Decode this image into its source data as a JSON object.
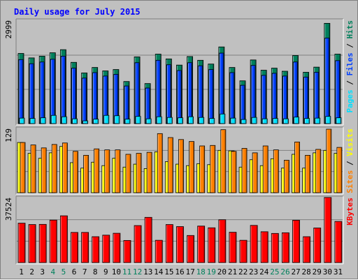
{
  "chart_data": {
    "type": "bar",
    "title": "Daily usage for July 2015",
    "colors": {
      "background": "#c0c0c0",
      "title": "#0000ff",
      "hits": "#00805c",
      "files": "#0040ff",
      "pages": "#00e0ff",
      "visits": "#ffff00",
      "sites": "#ff8000",
      "kbytes": "#ff0000",
      "weekend_day": "#00805c",
      "weekday": "#000000"
    },
    "days": [
      "1",
      "2",
      "3",
      "4",
      "5",
      "6",
      "7",
      "8",
      "9",
      "10",
      "11",
      "12",
      "13",
      "14",
      "15",
      "16",
      "17",
      "18",
      "19",
      "20",
      "21",
      "22",
      "23",
      "24",
      "25",
      "26",
      "27",
      "28",
      "29",
      "30",
      "31"
    ],
    "weekend_days": [
      "4",
      "5",
      "11",
      "12",
      "18",
      "19",
      "25",
      "26"
    ],
    "panels": [
      {
        "id": "top",
        "max_label": "2999",
        "ylim": [
          0,
          2999
        ],
        "legend": [
          {
            "text": "Pages",
            "color": "#00e0ff"
          },
          {
            "text": " / ",
            "color": "#000000"
          },
          {
            "text": "Files",
            "color": "#0040ff"
          },
          {
            "text": " / ",
            "color": "#000000"
          },
          {
            "text": "Hits",
            "color": "#00805c"
          }
        ],
        "series": [
          {
            "name": "Hits",
            "color": "#00805c",
            "values": [
              2050,
              1920,
              1970,
              2070,
              2160,
              1790,
              1480,
              1640,
              1540,
              1580,
              1230,
              1950,
              1170,
              2030,
              1890,
              1710,
              1960,
              1850,
              1740,
              2240,
              1640,
              1250,
              1860,
              1560,
              1620,
              1530,
              1990,
              1500,
              1650,
              2930,
              2030
            ]
          },
          {
            "name": "Files",
            "color": "#0040ff",
            "values": [
              1870,
              1750,
              1800,
              1880,
              1970,
              1620,
              1330,
              1490,
              1390,
              1440,
              1100,
              1780,
              1040,
              1850,
              1720,
              1550,
              1780,
              1690,
              1580,
              2060,
              1490,
              1120,
              1700,
              1410,
              1470,
              1390,
              1800,
              1360,
              1500,
              2500,
              1840
            ]
          },
          {
            "name": "Pages",
            "color": "#00e0ff",
            "values": [
              160,
              150,
              170,
              240,
              200,
              140,
              80,
              130,
              240,
              230,
              130,
              210,
              140,
              200,
              180,
              170,
              200,
              180,
              150,
              280,
              160,
              120,
              180,
              140,
              150,
              140,
              190,
              150,
              160,
              210,
              170
            ]
          }
        ]
      },
      {
        "id": "middle",
        "max_label": "129",
        "ylim": [
          0,
          129
        ],
        "legend": [
          {
            "text": "Sites",
            "color": "#ff8000"
          },
          {
            "text": " / ",
            "color": "#000000"
          },
          {
            "text": "Visits",
            "color": "#ffff00"
          }
        ],
        "series": [
          {
            "name": "Visits",
            "color": "#ffff00",
            "values": [
              102,
              80,
              70,
              81,
              94,
              61,
              50,
              62,
              55,
              70,
              52,
              58,
              49,
              83,
              63,
              58,
              55,
              59,
              57,
              86,
              85,
              52,
              67,
              55,
              69,
              50,
              78,
              50,
              81,
              86,
              80
            ]
          },
          {
            "name": "Sites",
            "color": "#ff8000",
            "values": [
              102,
              97,
              91,
              98,
              101,
              84,
              76,
              89,
              87,
              87,
              78,
              80,
              82,
              120,
              112,
              108,
              104,
              95,
              96,
              128,
              84,
              90,
              81,
              95,
              87,
              66,
              103,
              76,
              88,
              129,
              92
            ]
          }
        ]
      },
      {
        "id": "bottom",
        "max_label": "37524",
        "ylim": [
          0,
          37524
        ],
        "legend": [
          {
            "text": "KBytes",
            "color": "#ff0000"
          }
        ],
        "series": [
          {
            "name": "KBytes",
            "color": "#ff0000",
            "values": [
              23000,
              22200,
              22300,
              24800,
              27300,
              17600,
              17600,
              15100,
              16000,
              17100,
              12900,
              21600,
              26400,
              13000,
              22200,
              21000,
              15800,
              21300,
              20300,
              25000,
              17700,
              13000,
              21700,
              18000,
              17000,
              17400,
              24700,
              15100,
              20200,
              38000,
              24000
            ]
          }
        ]
      }
    ]
  }
}
